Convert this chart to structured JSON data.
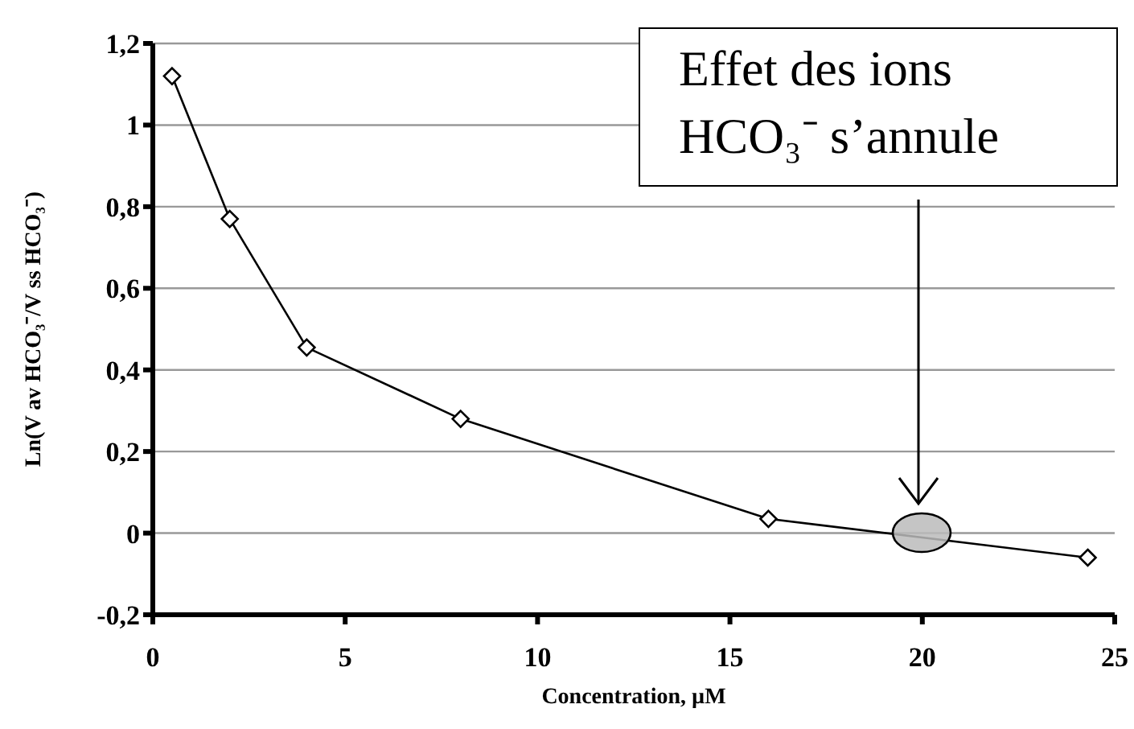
{
  "chart_data": {
    "type": "line",
    "xlabel": "Concentration, µM",
    "ylabel": "Ln(V av HCO₃⁻/V ss HCO₃⁻)",
    "x": [
      0.5,
      2,
      4,
      8,
      16,
      24.3
    ],
    "series": [
      {
        "color": "#000000",
        "values": [
          1.12,
          0.77,
          0.455,
          0.28,
          0.035,
          -0.06
        ]
      }
    ],
    "xlim": [
      0,
      25
    ],
    "xticks": [
      0,
      5,
      10,
      15,
      20,
      25
    ],
    "ylim": [
      -0.2,
      1.2
    ],
    "yticks": [
      {
        "value": -0.2,
        "label": "-0,2"
      },
      0,
      {
        "value": 0.2,
        "label": "0,2"
      },
      {
        "value": 0.4,
        "label": "0,4"
      },
      {
        "value": 0.6,
        "label": "0,6"
      },
      {
        "value": 0.8,
        "label": "0,8"
      },
      1,
      {
        "value": 1.2,
        "label": "1,2"
      }
    ],
    "grid": "y",
    "legend": false,
    "marker": "diamond",
    "line_style": "solid",
    "annotations": [
      "Effet des ions HCO₃⁻ s’annule"
    ]
  }
}
